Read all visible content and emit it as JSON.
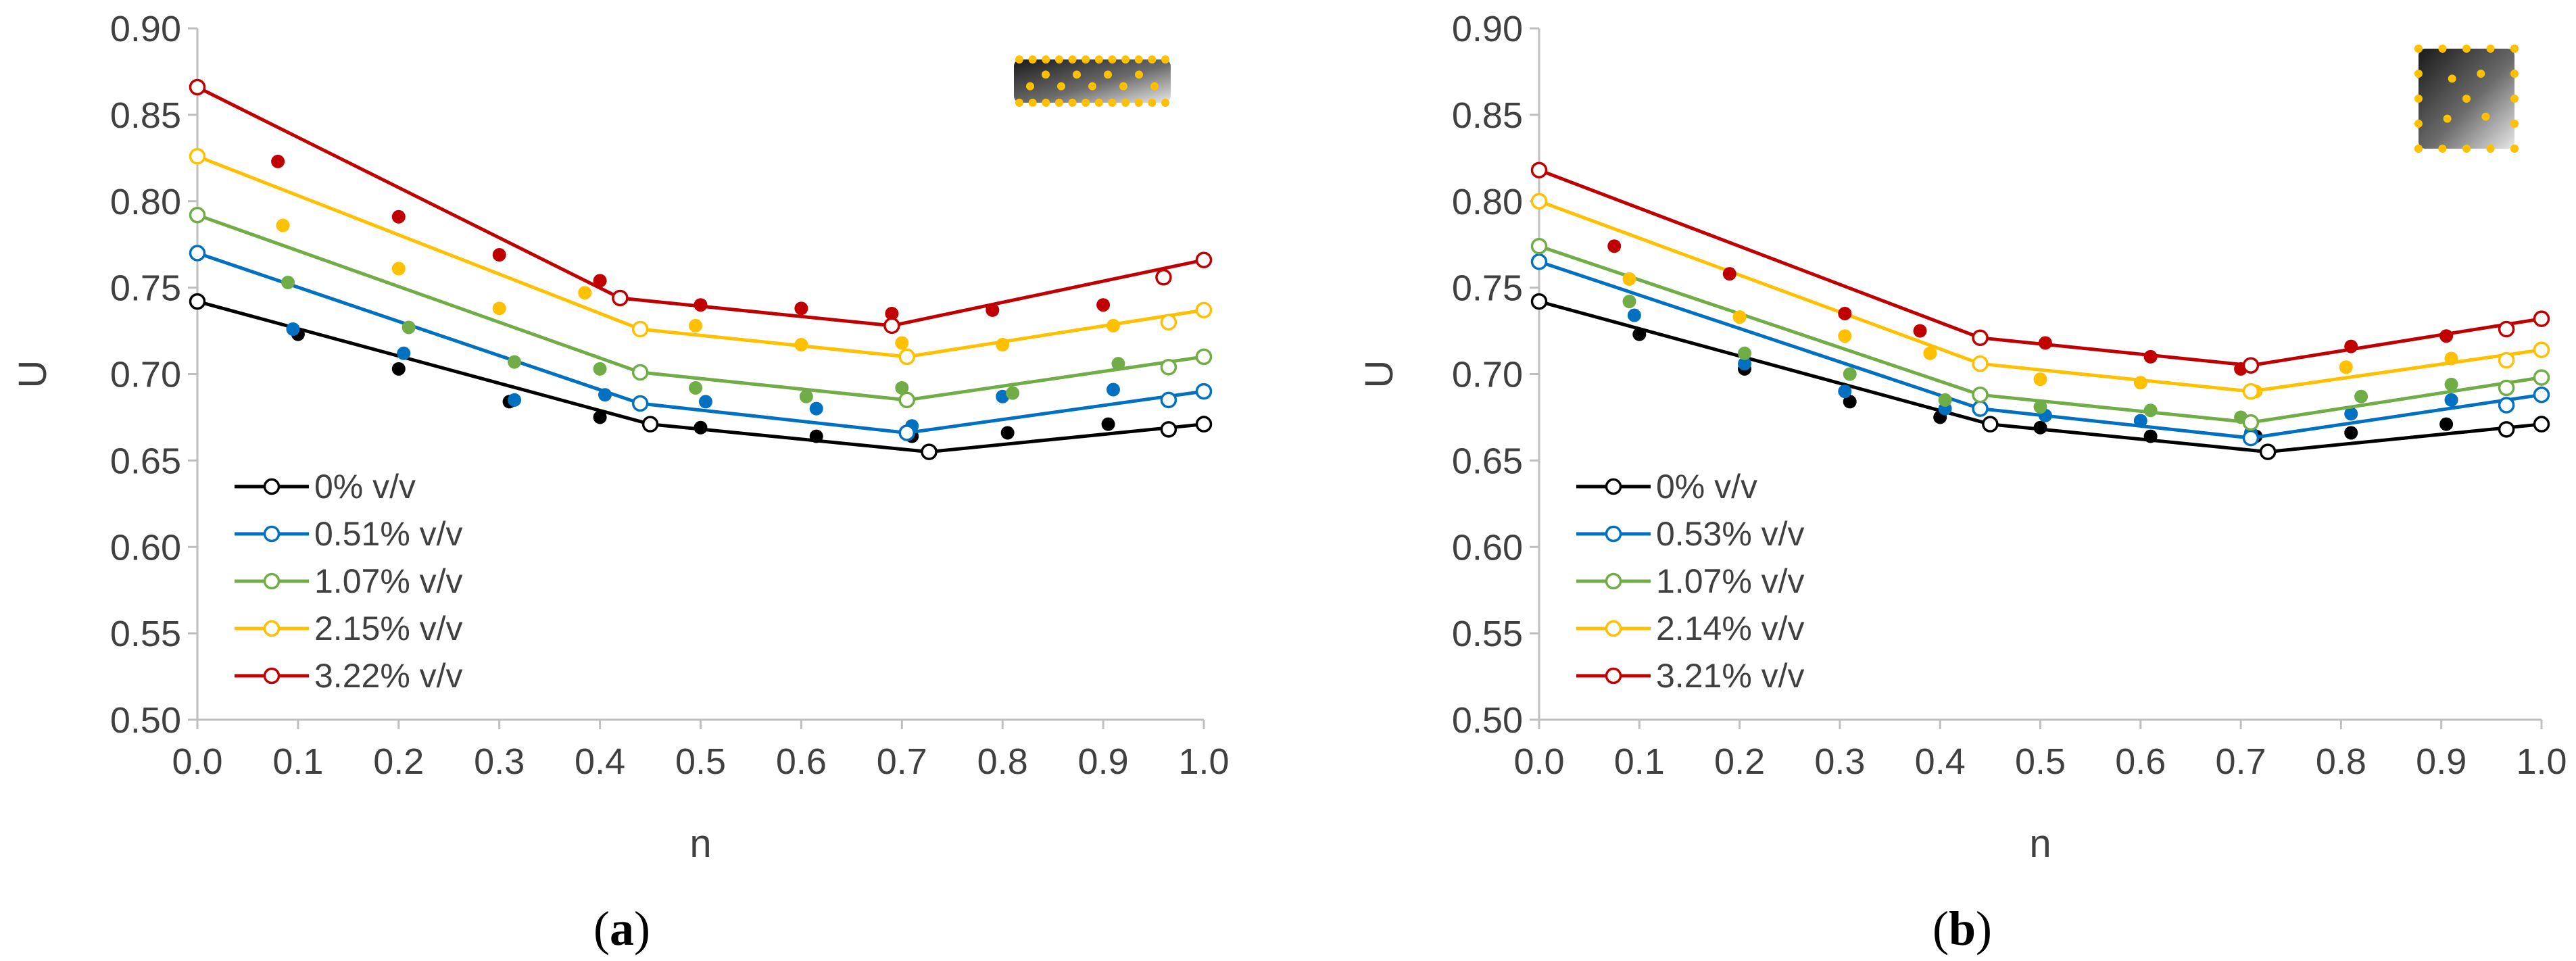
{
  "colors": {
    "black": "#000000",
    "blue": "#0070C0",
    "green": "#70AD47",
    "yellow": "#FFC000",
    "red": "#C00000",
    "axis": "#BFBFBF",
    "text": "#404040"
  },
  "chart_data": [
    {
      "type": "line",
      "panel_label": "(a)",
      "panel_letter": "a",
      "xlabel": "n",
      "ylabel": "U",
      "xlim": [
        0,
        1
      ],
      "ylim": [
        0.5,
        0.9
      ],
      "xticks": [
        "0.0",
        "0.1",
        "0.2",
        "0.3",
        "0.4",
        "0.5",
        "0.6",
        "0.7",
        "0.8",
        "0.9",
        "1.0"
      ],
      "yticks": [
        "0.50",
        "0.55",
        "0.60",
        "0.65",
        "0.70",
        "0.75",
        "0.80",
        "0.85",
        "0.90"
      ],
      "legend_position": "bottom-left",
      "inset_icon": "horizontal-nanoparticle-slab-icon",
      "series": [
        {
          "name": "0% v/v",
          "color_key": "black",
          "line": [
            [
              0.0,
              0.742
            ],
            [
              0.45,
              0.671
            ],
            [
              0.727,
              0.655
            ],
            [
              1.0,
              0.671
            ]
          ],
          "open": [
            [
              0.0,
              0.742
            ],
            [
              0.45,
              0.671
            ],
            [
              0.727,
              0.655
            ],
            [
              0.965,
              0.668
            ],
            [
              1.0,
              0.671
            ]
          ],
          "filled": [
            [
              0.1,
              0.723
            ],
            [
              0.2,
              0.703
            ],
            [
              0.31,
              0.684
            ],
            [
              0.4,
              0.675
            ],
            [
              0.5,
              0.669
            ],
            [
              0.615,
              0.664
            ],
            [
              0.71,
              0.664
            ],
            [
              0.805,
              0.666
            ],
            [
              0.905,
              0.671
            ],
            [
              1.0,
              0.672
            ]
          ]
        },
        {
          "name": "0.51% v/v",
          "color_key": "blue",
          "line": [
            [
              0.0,
              0.77
            ],
            [
              0.44,
              0.683
            ],
            [
              0.705,
              0.666
            ],
            [
              1.0,
              0.69
            ]
          ],
          "open": [
            [
              0.0,
              0.77
            ],
            [
              0.44,
              0.683
            ],
            [
              0.705,
              0.666
            ],
            [
              0.965,
              0.685
            ],
            [
              1.0,
              0.69
            ]
          ],
          "filled": [
            [
              0.095,
              0.726
            ],
            [
              0.205,
              0.712
            ],
            [
              0.315,
              0.685
            ],
            [
              0.405,
              0.688
            ],
            [
              0.505,
              0.684
            ],
            [
              0.615,
              0.68
            ],
            [
              0.71,
              0.67
            ],
            [
              0.8,
              0.687
            ],
            [
              0.91,
              0.691
            ]
          ]
        },
        {
          "name": "1.07% v/v",
          "color_key": "green",
          "line": [
            [
              0.0,
              0.792
            ],
            [
              0.44,
              0.701
            ],
            [
              0.705,
              0.685
            ],
            [
              1.0,
              0.71
            ]
          ],
          "open": [
            [
              0.0,
              0.792
            ],
            [
              0.44,
              0.701
            ],
            [
              0.705,
              0.685
            ],
            [
              0.965,
              0.704
            ],
            [
              1.0,
              0.71
            ]
          ],
          "filled": [
            [
              0.09,
              0.753
            ],
            [
              0.21,
              0.727
            ],
            [
              0.315,
              0.707
            ],
            [
              0.4,
              0.703
            ],
            [
              0.495,
              0.692
            ],
            [
              0.605,
              0.687
            ],
            [
              0.7,
              0.692
            ],
            [
              0.81,
              0.689
            ],
            [
              0.915,
              0.706
            ]
          ]
        },
        {
          "name": "2.15% v/v",
          "color_key": "yellow",
          "line": [
            [
              0.0,
              0.826
            ],
            [
              0.44,
              0.726
            ],
            [
              0.705,
              0.71
            ],
            [
              1.0,
              0.737
            ]
          ],
          "open": [
            [
              0.0,
              0.826
            ],
            [
              0.44,
              0.726
            ],
            [
              0.705,
              0.71
            ],
            [
              0.965,
              0.73
            ],
            [
              1.0,
              0.737
            ]
          ],
          "filled": [
            [
              0.085,
              0.786
            ],
            [
              0.2,
              0.761
            ],
            [
              0.3,
              0.738
            ],
            [
              0.385,
              0.747
            ],
            [
              0.495,
              0.728
            ],
            [
              0.6,
              0.717
            ],
            [
              0.7,
              0.718
            ],
            [
              0.8,
              0.717
            ],
            [
              0.91,
              0.728
            ]
          ]
        },
        {
          "name": "3.22% v/v",
          "color_key": "red",
          "line": [
            [
              0.0,
              0.866
            ],
            [
              0.42,
              0.744
            ],
            [
              0.69,
              0.728
            ],
            [
              1.0,
              0.766
            ]
          ],
          "open": [
            [
              0.0,
              0.866
            ],
            [
              0.42,
              0.744
            ],
            [
              0.69,
              0.728
            ],
            [
              0.96,
              0.756
            ],
            [
              1.0,
              0.766
            ]
          ],
          "filled": [
            [
              0.08,
              0.823
            ],
            [
              0.2,
              0.791
            ],
            [
              0.3,
              0.769
            ],
            [
              0.4,
              0.754
            ],
            [
              0.5,
              0.74
            ],
            [
              0.6,
              0.738
            ],
            [
              0.69,
              0.735
            ],
            [
              0.79,
              0.737
            ],
            [
              0.9,
              0.74
            ]
          ]
        }
      ]
    },
    {
      "type": "line",
      "panel_label": "(b)",
      "panel_letter": "b",
      "xlabel": "n",
      "ylabel": "U",
      "xlim": [
        0,
        1
      ],
      "ylim": [
        0.5,
        0.9
      ],
      "xticks": [
        "0.0",
        "0.1",
        "0.2",
        "0.3",
        "0.4",
        "0.5",
        "0.6",
        "0.7",
        "0.8",
        "0.9",
        "1.0"
      ],
      "yticks": [
        "0.50",
        "0.55",
        "0.60",
        "0.65",
        "0.70",
        "0.75",
        "0.80",
        "0.85",
        "0.90"
      ],
      "legend_position": "bottom-left",
      "inset_icon": "square-nanoparticle-slab-icon",
      "series": [
        {
          "name": "0% v/v",
          "color_key": "black",
          "line": [
            [
              0.0,
              0.742
            ],
            [
              0.45,
              0.671
            ],
            [
              0.727,
              0.655
            ],
            [
              1.0,
              0.671
            ]
          ],
          "open": [
            [
              0.0,
              0.742
            ],
            [
              0.45,
              0.671
            ],
            [
              0.727,
              0.655
            ],
            [
              0.965,
              0.668
            ],
            [
              1.0,
              0.671
            ]
          ],
          "filled": [
            [
              0.1,
              0.723
            ],
            [
              0.205,
              0.703
            ],
            [
              0.31,
              0.684
            ],
            [
              0.4,
              0.675
            ],
            [
              0.5,
              0.669
            ],
            [
              0.61,
              0.664
            ],
            [
              0.715,
              0.664
            ],
            [
              0.81,
              0.666
            ],
            [
              0.905,
              0.671
            ],
            [
              1.0,
              0.672
            ]
          ]
        },
        {
          "name": "0.53% v/v",
          "color_key": "blue",
          "line": [
            [
              0.0,
              0.765
            ],
            [
              0.44,
              0.68
            ],
            [
              0.71,
              0.663
            ],
            [
              1.0,
              0.688
            ]
          ],
          "open": [
            [
              0.0,
              0.765
            ],
            [
              0.44,
              0.68
            ],
            [
              0.71,
              0.663
            ],
            [
              0.965,
              0.682
            ],
            [
              1.0,
              0.688
            ]
          ],
          "filled": [
            [
              0.095,
              0.734
            ],
            [
              0.205,
              0.706
            ],
            [
              0.305,
              0.69
            ],
            [
              0.405,
              0.68
            ],
            [
              0.505,
              0.676
            ],
            [
              0.6,
              0.673
            ],
            [
              0.71,
              0.666
            ],
            [
              0.81,
              0.677
            ],
            [
              0.91,
              0.685
            ]
          ]
        },
        {
          "name": "1.07% v/v",
          "color_key": "green",
          "line": [
            [
              0.0,
              0.774
            ],
            [
              0.44,
              0.688
            ],
            [
              0.71,
              0.672
            ],
            [
              1.0,
              0.698
            ]
          ],
          "open": [
            [
              0.0,
              0.774
            ],
            [
              0.44,
              0.688
            ],
            [
              0.71,
              0.672
            ],
            [
              0.965,
              0.692
            ],
            [
              1.0,
              0.698
            ]
          ],
          "filled": [
            [
              0.09,
              0.742
            ],
            [
              0.205,
              0.712
            ],
            [
              0.31,
              0.7
            ],
            [
              0.405,
              0.685
            ],
            [
              0.5,
              0.681
            ],
            [
              0.61,
              0.679
            ],
            [
              0.7,
              0.675
            ],
            [
              0.82,
              0.687
            ],
            [
              0.91,
              0.694
            ]
          ]
        },
        {
          "name": "2.14% v/v",
          "color_key": "yellow",
          "line": [
            [
              0.0,
              0.8
            ],
            [
              0.44,
              0.706
            ],
            [
              0.71,
              0.69
            ],
            [
              1.0,
              0.714
            ]
          ],
          "open": [
            [
              0.0,
              0.8
            ],
            [
              0.44,
              0.706
            ],
            [
              0.71,
              0.69
            ],
            [
              0.965,
              0.708
            ],
            [
              1.0,
              0.714
            ]
          ],
          "filled": [
            [
              0.09,
              0.755
            ],
            [
              0.2,
              0.733
            ],
            [
              0.305,
              0.722
            ],
            [
              0.39,
              0.712
            ],
            [
              0.5,
              0.697
            ],
            [
              0.6,
              0.695
            ],
            [
              0.715,
              0.69
            ],
            [
              0.805,
              0.704
            ],
            [
              0.91,
              0.709
            ]
          ]
        },
        {
          "name": "3.21% v/v",
          "color_key": "red",
          "line": [
            [
              0.0,
              0.818
            ],
            [
              0.44,
              0.721
            ],
            [
              0.71,
              0.705
            ],
            [
              1.0,
              0.732
            ]
          ],
          "open": [
            [
              0.0,
              0.818
            ],
            [
              0.44,
              0.721
            ],
            [
              0.71,
              0.705
            ],
            [
              0.965,
              0.726
            ],
            [
              1.0,
              0.732
            ]
          ],
          "filled": [
            [
              0.075,
              0.774
            ],
            [
              0.19,
              0.758
            ],
            [
              0.305,
              0.735
            ],
            [
              0.38,
              0.725
            ],
            [
              0.505,
              0.718
            ],
            [
              0.61,
              0.71
            ],
            [
              0.7,
              0.703
            ],
            [
              0.81,
              0.716
            ],
            [
              0.905,
              0.722
            ]
          ]
        }
      ]
    }
  ]
}
